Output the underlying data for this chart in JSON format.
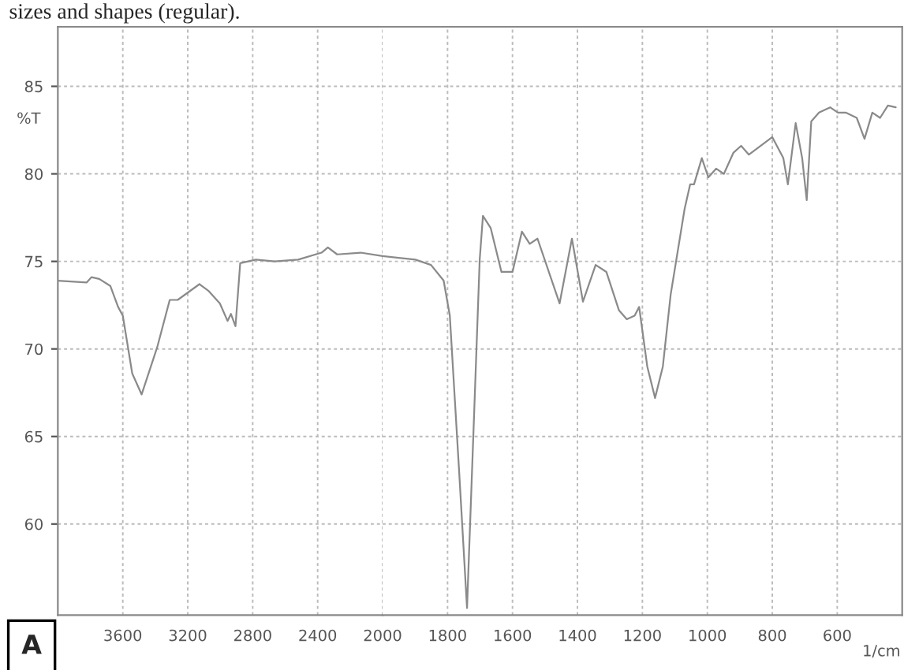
{
  "chart_data": [
    {
      "type": "line",
      "ylabel": "%T",
      "annotations": [
        "sizes and shapes (regular).",
        "A"
      ],
      "x": [
        4000,
        3822,
        3793,
        3745,
        3677,
        3629,
        3600,
        3542,
        3484,
        3388,
        3311,
        3262,
        3128,
        3070,
        3002,
        2955,
        2934,
        2906,
        2877,
        2780,
        2665,
        2520,
        2376,
        2337,
        2280,
        2135,
        2000
      ],
      "series": [
        {
          "color": "#8a8a8a",
          "values": [
            73.9,
            73.8,
            74.1,
            74.0,
            73.6,
            72.4,
            71.9,
            68.6,
            67.4,
            70.1,
            72.8,
            72.8,
            73.7,
            73.3,
            72.6,
            71.6,
            72.0,
            71.3,
            74.9,
            75.1,
            75.0,
            75.1,
            75.5,
            75.8,
            75.4,
            75.5,
            75.3
          ]
        }
      ],
      "xlim": [
        4000,
        2000
      ],
      "xticks": [
        3600,
        3200,
        2800,
        2400,
        2000
      ],
      "ylim": [
        54.8,
        88.4
      ],
      "yticks": [
        60,
        65,
        70,
        75,
        80,
        85
      ],
      "grid": true,
      "marker": "none",
      "line_style": "solid"
    },
    {
      "type": "line",
      "xlabel": "1/cm",
      "x": [
        2000,
        1899,
        1851,
        1812,
        1793,
        1764,
        1740,
        1716,
        1701,
        1691,
        1667,
        1634,
        1600,
        1571,
        1547,
        1523,
        1455,
        1417,
        1383,
        1344,
        1311,
        1272,
        1248,
        1224,
        1210,
        1185,
        1161,
        1137,
        1113,
        1070,
        1053,
        1041,
        1017,
        997,
        973,
        949,
        920,
        896,
        872,
        829,
        800,
        766,
        752,
        728,
        708,
        694,
        680,
        656,
        622,
        598,
        574,
        540,
        516,
        492,
        468,
        444,
        420
      ],
      "series": [
        {
          "color": "#8a8a8a",
          "values": [
            75.3,
            75.1,
            74.8,
            73.9,
            71.9,
            62.9,
            55.2,
            67.4,
            75.1,
            77.6,
            76.9,
            74.4,
            74.4,
            76.7,
            76.0,
            76.3,
            72.6,
            76.3,
            72.7,
            74.8,
            74.4,
            72.2,
            71.7,
            71.9,
            72.4,
            69.0,
            67.2,
            69.0,
            73.1,
            78.0,
            79.4,
            79.4,
            80.9,
            79.8,
            80.3,
            80.0,
            81.2,
            81.6,
            81.1,
            81.7,
            82.1,
            80.9,
            79.4,
            82.9,
            80.9,
            78.5,
            83.0,
            83.5,
            83.8,
            83.5,
            83.5,
            83.2,
            82.0,
            83.5,
            83.2,
            83.9,
            83.8
          ]
        }
      ],
      "xlim": [
        2000,
        400
      ],
      "xticks": [
        1800,
        1600,
        1400,
        1200,
        1000,
        800,
        600
      ],
      "ylim": [
        54.8,
        88.4
      ],
      "yticks": [
        60,
        65,
        70,
        75,
        80,
        85
      ],
      "tick_labels": "x",
      "grid": true,
      "marker": "none",
      "line_style": "solid"
    }
  ]
}
